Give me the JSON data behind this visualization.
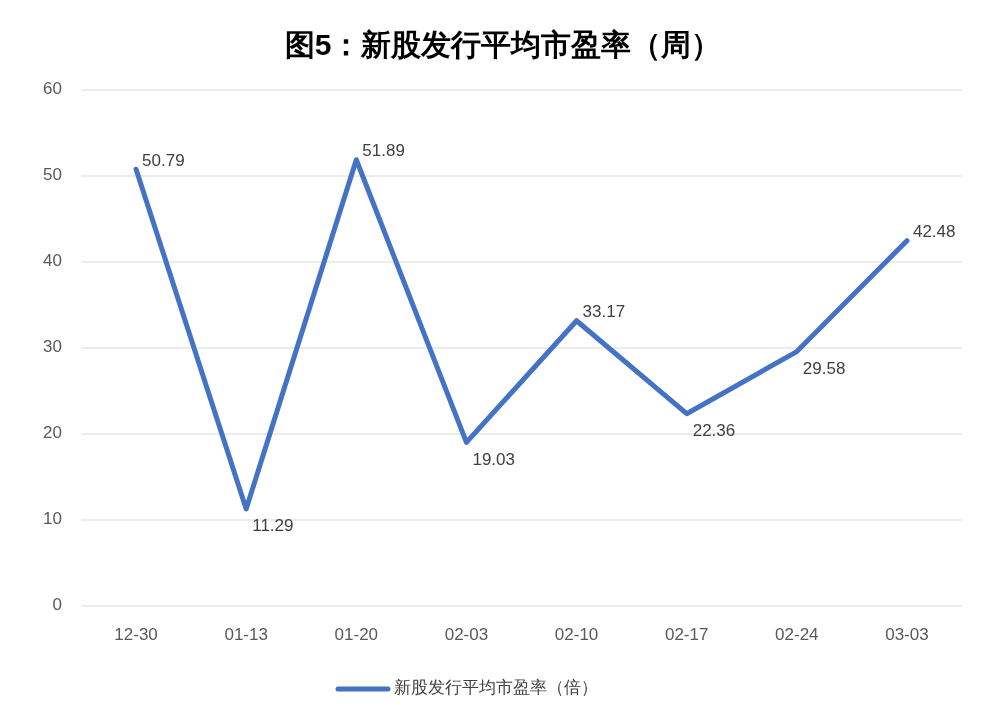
{
  "chart_data": {
    "type": "line",
    "title": "图5：新股发行平均市盈率（周）",
    "categories": [
      "12-30",
      "01-13",
      "01-20",
      "02-03",
      "02-10",
      "02-17",
      "02-24",
      "03-03"
    ],
    "series": [
      {
        "name": "新股发行平均市盈率（倍）",
        "color": "#4472c4",
        "values": [
          50.79,
          11.29,
          51.89,
          19.03,
          33.17,
          22.36,
          29.58,
          42.48
        ]
      }
    ],
    "ylim": [
      0,
      60
    ],
    "yticks": [
      0,
      10,
      20,
      30,
      40,
      50,
      60
    ],
    "grid": "y",
    "legend": "bottom",
    "data_labels": true,
    "marker": "none",
    "line_style": "solid"
  }
}
